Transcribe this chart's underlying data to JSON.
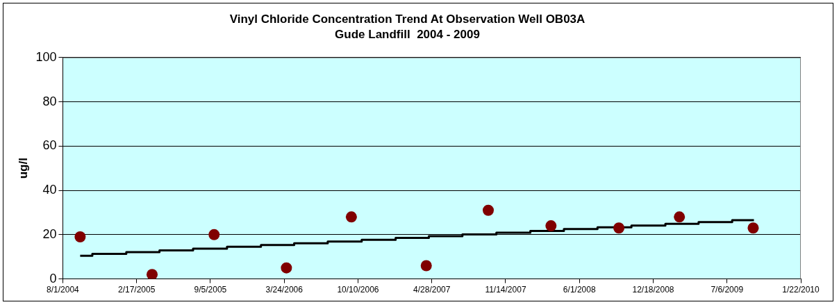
{
  "chart_data": {
    "type": "scatter",
    "title": "Vinyl Chloride Concentration Trend At Observation Well OB03A",
    "subtitle": "Gude Landfill  2004 - 2009",
    "ylabel": "ug/l",
    "xlim": [
      "2004-08-01",
      "2010-01-22"
    ],
    "xticks": [
      {
        "value": "2004-08-01",
        "label": "8/1/2004"
      },
      {
        "value": "2005-02-17",
        "label": "2/17/2005"
      },
      {
        "value": "2005-09-05",
        "label": "9/5/2005"
      },
      {
        "value": "2006-03-24",
        "label": "3/24/2006"
      },
      {
        "value": "2006-10-10",
        "label": "10/10/2006"
      },
      {
        "value": "2007-04-28",
        "label": "4/28/2007"
      },
      {
        "value": "2007-11-14",
        "label": "11/14/2007"
      },
      {
        "value": "2008-06-01",
        "label": "6/1/2008"
      },
      {
        "value": "2008-12-18",
        "label": "12/18/2008"
      },
      {
        "value": "2009-07-06",
        "label": "7/6/2009"
      },
      {
        "value": "2010-01-22",
        "label": "1/22/2010"
      }
    ],
    "ylim": [
      0,
      100
    ],
    "yticks": [
      0,
      20,
      40,
      60,
      80,
      100
    ],
    "grid": "y",
    "legend": false,
    "series": [
      {
        "marker": "circle",
        "color": "#800000",
        "x": [
          "2004-09-17",
          "2005-03-31",
          "2005-09-15",
          "2006-03-30",
          "2006-09-22",
          "2007-04-13",
          "2007-09-28",
          "2008-03-16",
          "2008-09-16",
          "2009-02-27",
          "2009-09-15"
        ],
        "values": [
          19,
          2,
          20,
          5,
          28,
          6,
          31,
          24,
          23,
          28,
          23
        ]
      },
      {
        "type": "step",
        "marker": "none",
        "color": "#000000",
        "x": [
          "2004-09-17",
          "2004-10-20",
          "2005-01-20",
          "2005-04-20",
          "2005-07-20",
          "2005-10-20",
          "2006-01-20",
          "2006-04-20",
          "2006-07-20",
          "2006-10-20",
          "2007-01-20",
          "2007-04-20",
          "2007-07-20",
          "2007-10-20",
          "2008-01-20",
          "2008-04-20",
          "2008-07-20",
          "2008-10-20",
          "2009-01-20",
          "2009-04-20",
          "2009-07-20",
          "2009-09-17"
        ],
        "values": [
          10.5,
          11.3,
          12.1,
          12.9,
          13.7,
          14.5,
          15.3,
          16.1,
          16.9,
          17.7,
          18.5,
          19.3,
          20.1,
          20.9,
          21.7,
          22.5,
          23.3,
          24.1,
          24.9,
          25.7,
          26.5,
          26.5
        ]
      }
    ]
  }
}
